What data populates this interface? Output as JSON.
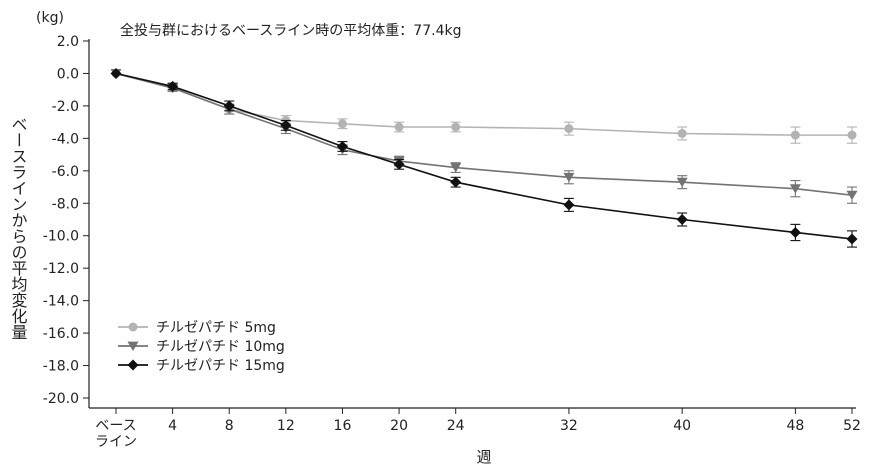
{
  "chart_data": {
    "type": "line",
    "title": "",
    "annotation": "全投与群におけるベースライン時の平均体重：77.4kg",
    "y_unit": "(kg)",
    "ylabel": "ベースラインからの平均変化量",
    "xlabel": "週",
    "ylim": [
      -20.0,
      2.0
    ],
    "y_ticks": [
      "2.0",
      "0.0",
      "-2.0",
      "-4.0",
      "-6.0",
      "-8.0",
      "-10.0",
      "-12.0",
      "-14.0",
      "-16.0",
      "-18.0",
      "-20.0"
    ],
    "x": [
      0,
      4,
      8,
      12,
      16,
      20,
      24,
      32,
      40,
      48,
      52
    ],
    "x_tick_labels": [
      "ベース\nライン",
      "4",
      "8",
      "12",
      "16",
      "20",
      "24",
      "32",
      "40",
      "48",
      "52"
    ],
    "grid": false,
    "legend_position": "bottom-left",
    "series": [
      {
        "name": "チルゼパチド 5mg",
        "color": "#b3b3b3",
        "marker": "circle",
        "values": [
          0.0,
          -0.9,
          -2.2,
          -2.9,
          -3.1,
          -3.3,
          -3.3,
          -3.4,
          -3.7,
          -3.8,
          -3.8
        ],
        "error": [
          0.1,
          0.2,
          0.3,
          0.3,
          0.3,
          0.3,
          0.3,
          0.4,
          0.4,
          0.5,
          0.5
        ]
      },
      {
        "name": "チルゼパチド 10mg",
        "color": "#737373",
        "marker": "triangle-down",
        "values": [
          0.0,
          -0.9,
          -2.2,
          -3.4,
          -4.7,
          -5.4,
          -5.8,
          -6.4,
          -6.7,
          -7.1,
          -7.5
        ],
        "error": [
          0.1,
          0.2,
          0.3,
          0.3,
          0.3,
          0.3,
          0.3,
          0.4,
          0.4,
          0.5,
          0.5
        ]
      },
      {
        "name": "チルゼパチド 15mg",
        "color": "#111111",
        "marker": "diamond",
        "values": [
          0.0,
          -0.8,
          -2.0,
          -3.2,
          -4.5,
          -5.6,
          -6.7,
          -8.1,
          -9.0,
          -9.8,
          -10.2
        ],
        "error": [
          0.1,
          0.2,
          0.3,
          0.3,
          0.3,
          0.3,
          0.3,
          0.4,
          0.4,
          0.5,
          0.5
        ]
      }
    ]
  }
}
